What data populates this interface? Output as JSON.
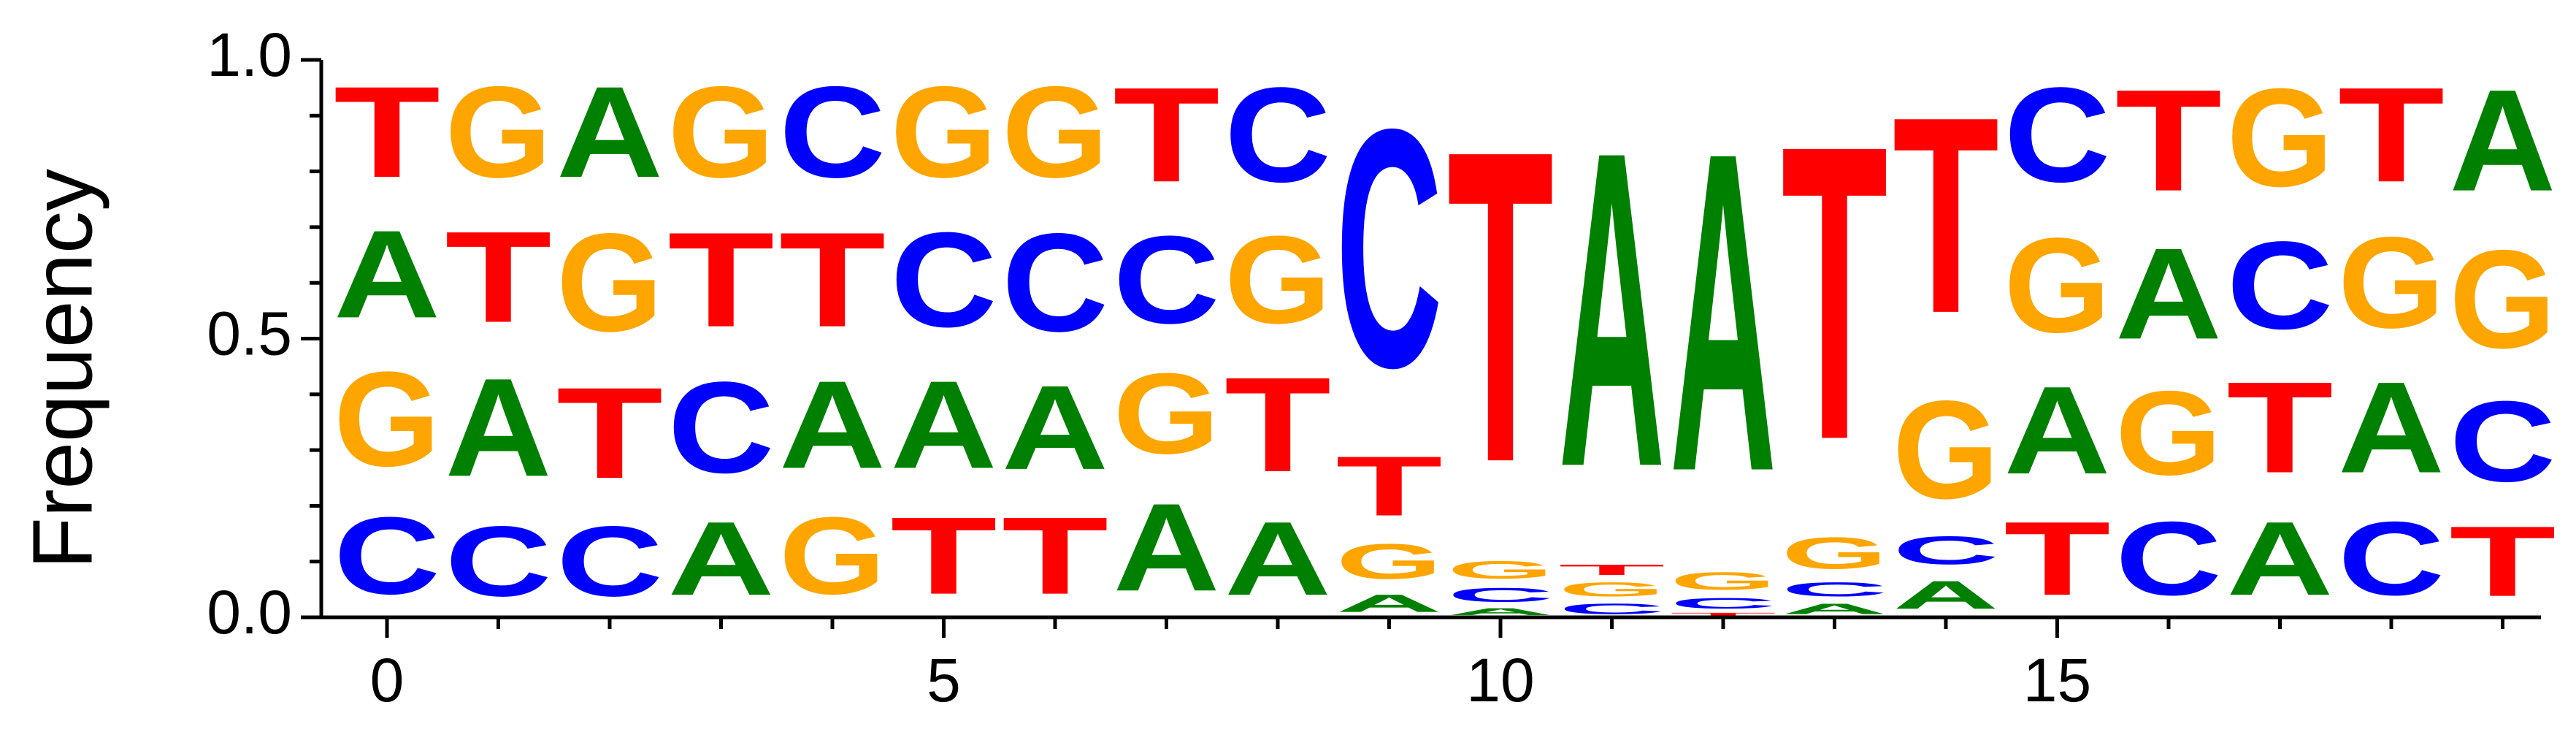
{
  "chart_data": {
    "type": "sequence-logo",
    "title": "",
    "xlabel": "",
    "ylabel": "Frequency",
    "xlim": [
      -0.5,
      19.0
    ],
    "ylim": [
      0.0,
      1.0
    ],
    "x_ticks": [
      0,
      5,
      10,
      15
    ],
    "y_ticks": [
      "0.0",
      "0.5",
      "1.0"
    ],
    "colors": {
      "A": "#008000",
      "C": "#0000ff",
      "G": "#ffa500",
      "T": "#ff0000"
    },
    "positions": [
      {
        "pos": 0,
        "stack": [
          [
            "C",
            0.22
          ],
          [
            "G",
            0.27
          ],
          [
            "A",
            0.25
          ],
          [
            "T",
            0.26
          ]
        ]
      },
      {
        "pos": 1,
        "stack": [
          [
            "C",
            0.2
          ],
          [
            "A",
            0.28
          ],
          [
            "T",
            0.26
          ],
          [
            "G",
            0.26
          ]
        ]
      },
      {
        "pos": 2,
        "stack": [
          [
            "C",
            0.2
          ],
          [
            "T",
            0.26
          ],
          [
            "G",
            0.28
          ],
          [
            "A",
            0.26
          ]
        ]
      },
      {
        "pos": 3,
        "stack": [
          [
            "A",
            0.21
          ],
          [
            "C",
            0.26
          ],
          [
            "T",
            0.27
          ],
          [
            "G",
            0.26
          ]
        ]
      },
      {
        "pos": 4,
        "stack": [
          [
            "G",
            0.22
          ],
          [
            "A",
            0.25
          ],
          [
            "T",
            0.27
          ],
          [
            "C",
            0.26
          ]
        ]
      },
      {
        "pos": 5,
        "stack": [
          [
            "T",
            0.22
          ],
          [
            "A",
            0.25
          ],
          [
            "C",
            0.27
          ],
          [
            "G",
            0.26
          ]
        ]
      },
      {
        "pos": 6,
        "stack": [
          [
            "T",
            0.22
          ],
          [
            "A",
            0.24
          ],
          [
            "C",
            0.28
          ],
          [
            "G",
            0.26
          ]
        ]
      },
      {
        "pos": 7,
        "stack": [
          [
            "A",
            0.25
          ],
          [
            "G",
            0.23
          ],
          [
            "C",
            0.25
          ],
          [
            "T",
            0.27
          ]
        ]
      },
      {
        "pos": 8,
        "stack": [
          [
            "A",
            0.21
          ],
          [
            "T",
            0.27
          ],
          [
            "G",
            0.25
          ],
          [
            "C",
            0.27
          ]
        ]
      },
      {
        "pos": 9,
        "stack": [
          [
            "A",
            0.05
          ],
          [
            "G",
            0.1
          ],
          [
            "T",
            0.17
          ],
          [
            "C",
            0.68
          ]
        ]
      },
      {
        "pos": 10,
        "stack": [
          [
            "A",
            0.02
          ],
          [
            "C",
            0.04
          ],
          [
            "G",
            0.05
          ],
          [
            "T",
            0.89
          ]
        ]
      },
      {
        "pos": 11,
        "stack": [
          [
            "C",
            0.03
          ],
          [
            "G",
            0.04
          ],
          [
            "T",
            0.03
          ],
          [
            "A",
            0.9
          ]
        ]
      },
      {
        "pos": 12,
        "stack": [
          [
            "T",
            0.01
          ],
          [
            "C",
            0.03
          ],
          [
            "G",
            0.05
          ],
          [
            "A",
            0.91
          ]
        ]
      },
      {
        "pos": 13,
        "stack": [
          [
            "A",
            0.03
          ],
          [
            "C",
            0.04
          ],
          [
            "G",
            0.09
          ],
          [
            "T",
            0.84
          ]
        ]
      },
      {
        "pos": 14,
        "stack": [
          [
            "A",
            0.08
          ],
          [
            "C",
            0.08
          ],
          [
            "G",
            0.28
          ],
          [
            "T",
            0.56
          ]
        ]
      },
      {
        "pos": 15,
        "stack": [
          [
            "T",
            0.21
          ],
          [
            "A",
            0.25
          ],
          [
            "G",
            0.27
          ],
          [
            "C",
            0.27
          ]
        ]
      },
      {
        "pos": 16,
        "stack": [
          [
            "C",
            0.21
          ],
          [
            "G",
            0.24
          ],
          [
            "A",
            0.26
          ],
          [
            "T",
            0.29
          ]
        ]
      },
      {
        "pos": 17,
        "stack": [
          [
            "A",
            0.21
          ],
          [
            "T",
            0.26
          ],
          [
            "C",
            0.25
          ],
          [
            "G",
            0.28
          ]
        ]
      },
      {
        "pos": 18,
        "stack": [
          [
            "C",
            0.21
          ],
          [
            "A",
            0.26
          ],
          [
            "G",
            0.26
          ],
          [
            "T",
            0.27
          ]
        ]
      },
      {
        "pos": 19,
        "stack": [
          [
            "T",
            0.2
          ],
          [
            "C",
            0.23
          ],
          [
            "G",
            0.28
          ],
          [
            "A",
            0.29
          ]
        ]
      }
    ]
  }
}
